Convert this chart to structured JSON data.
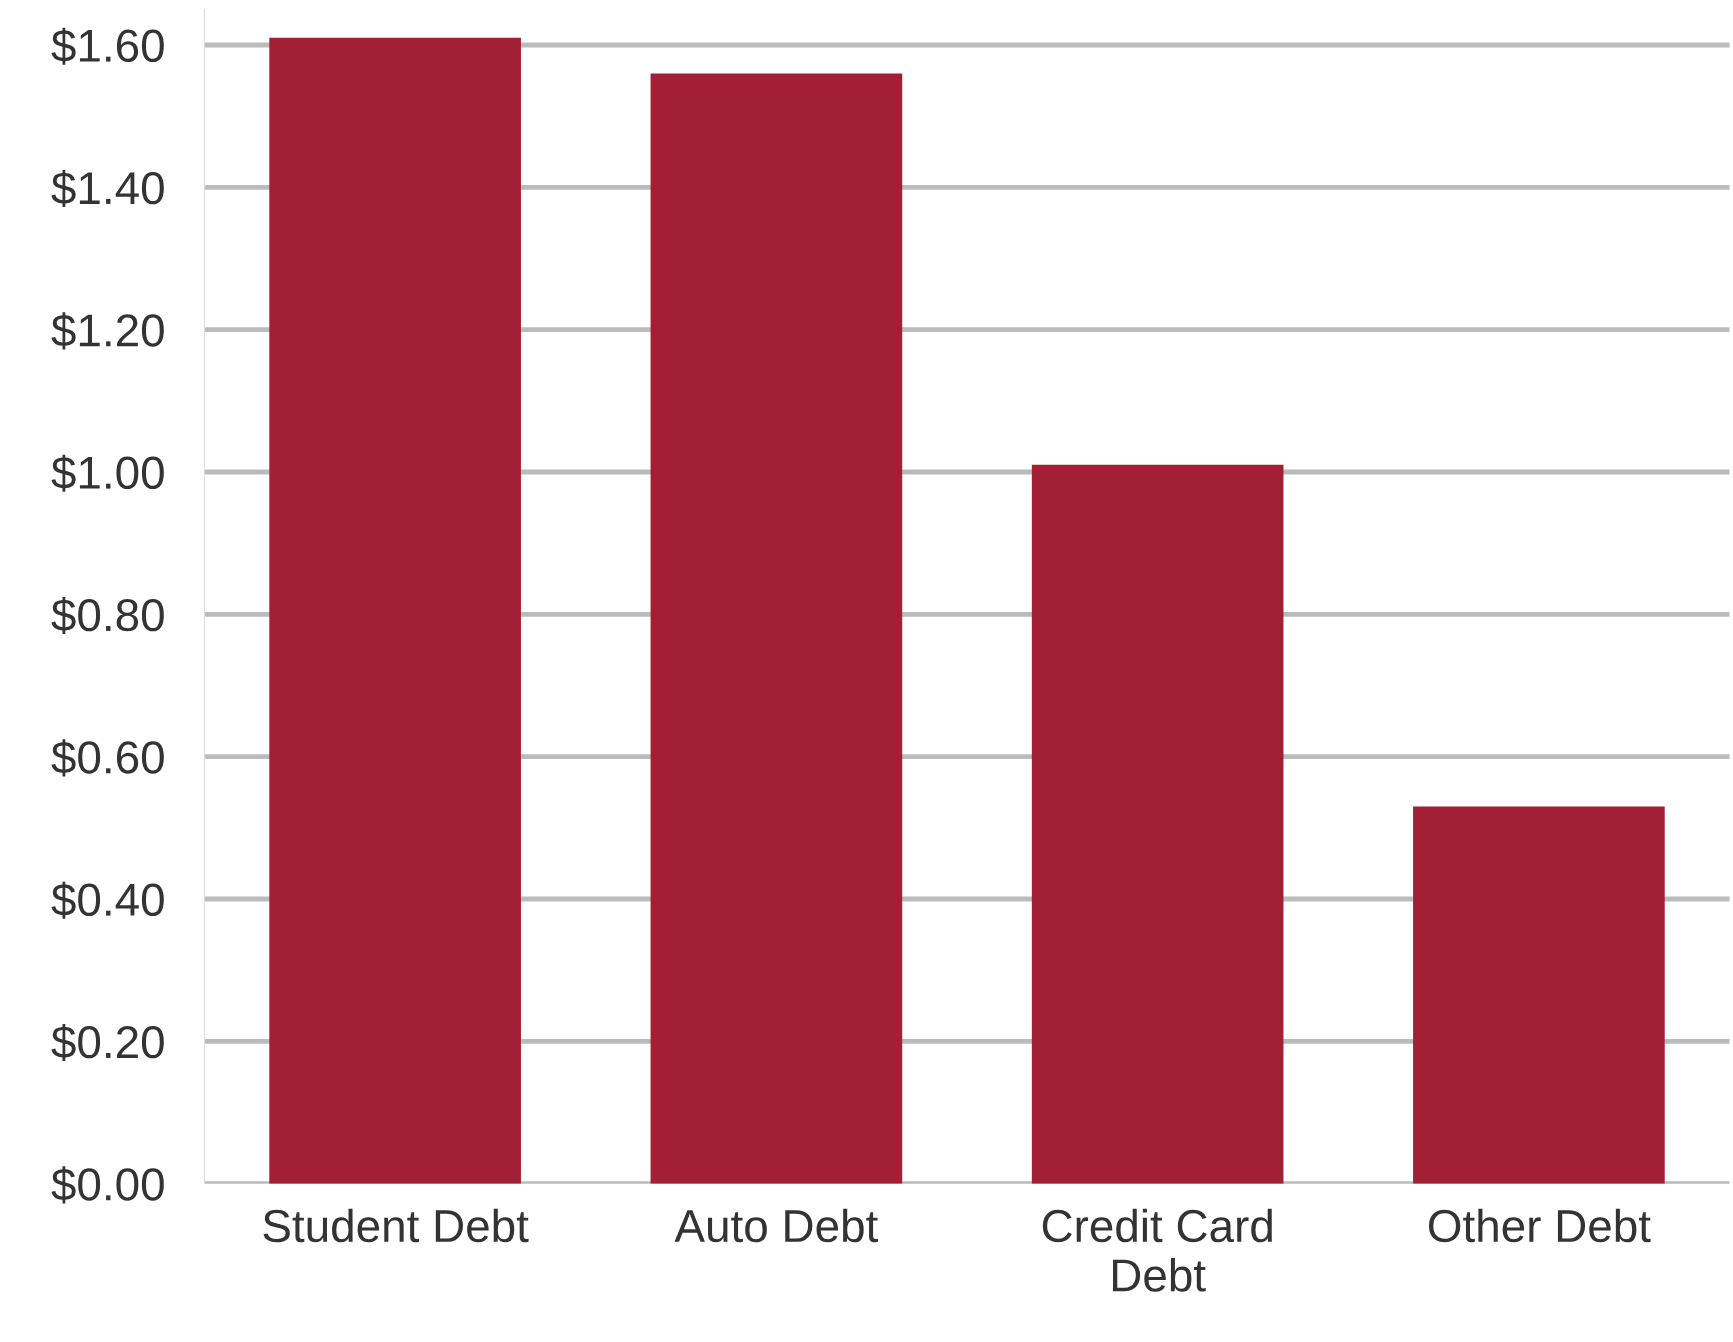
{
  "chart_data": {
    "type": "bar",
    "categories": [
      "Student Debt",
      "Auto Debt",
      "Credit Card Debt",
      "Other Debt"
    ],
    "values": [
      1.61,
      1.56,
      1.01,
      0.53
    ],
    "color": "#a31f36",
    "ylim": [
      0,
      1.65
    ],
    "yticks": [
      {
        "value": 0,
        "label": "$0.00"
      },
      {
        "value": 0.2,
        "label": "$0.20"
      },
      {
        "value": 0.4,
        "label": "$0.40"
      },
      {
        "value": 0.6,
        "label": "$0.60"
      },
      {
        "value": 0.8,
        "label": "$0.80"
      },
      {
        "value": 1.0,
        "label": "$1.00"
      },
      {
        "value": 1.2,
        "label": "$1.20"
      },
      {
        "value": 1.4,
        "label": "$1.40"
      },
      {
        "value": 1.6,
        "label": "$1.60"
      }
    ],
    "grid": "y"
  }
}
